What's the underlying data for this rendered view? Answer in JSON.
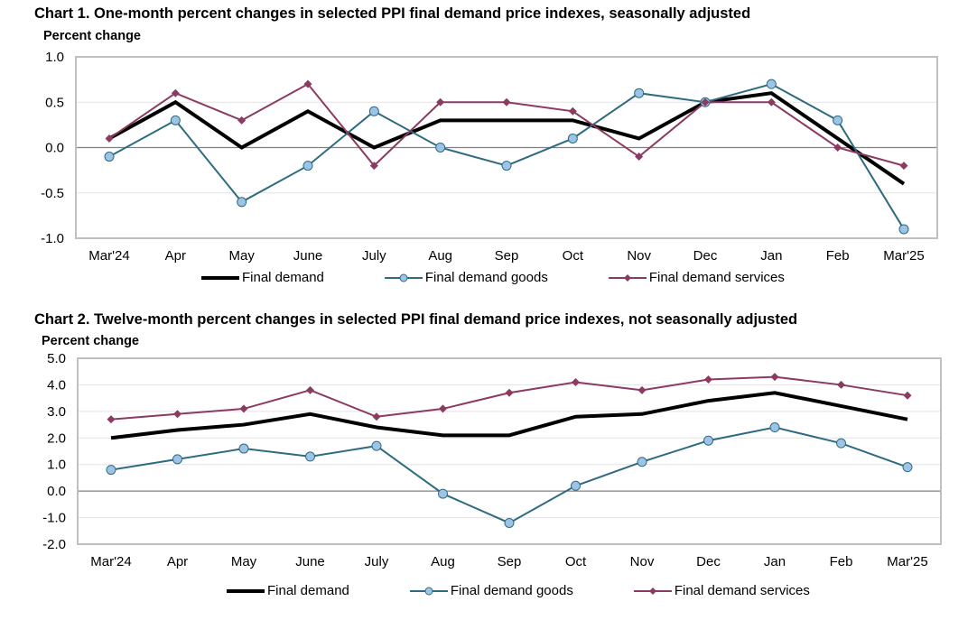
{
  "colors": {
    "final_demand": "#000000",
    "goods_line": "#2E6B80",
    "goods_marker": "#9DC3E6",
    "services": "#8B3A62",
    "frame": "#BFBFBF",
    "gridline": "#E3E3E3",
    "zero_line": "#808080"
  },
  "chart_data": [
    {
      "type": "line",
      "title": "Chart 1. One-month percent changes in selected PPI final demand price indexes, seasonally adjusted",
      "ylabel": "Percent change",
      "xlabel": "",
      "categories": [
        "Mar'24",
        "Apr",
        "May",
        "June",
        "July",
        "Aug",
        "Sep",
        "Oct",
        "Nov",
        "Dec",
        "Jan",
        "Feb",
        "Mar'25"
      ],
      "ylim": [
        -1.0,
        1.0
      ],
      "yticks": [
        1.0,
        0.5,
        0.0,
        -0.5,
        -1.0
      ],
      "ytick_labels": [
        "1.0",
        "0.5",
        "0.0",
        "-0.5",
        "-1.0"
      ],
      "grid": true,
      "legend_position": "bottom",
      "series": [
        {
          "key": "final_demand",
          "name": "Final demand",
          "marker": "none",
          "values": [
            0.1,
            0.5,
            0.0,
            0.4,
            0.0,
            0.3,
            0.3,
            0.3,
            0.1,
            0.5,
            0.6,
            0.1,
            -0.4
          ]
        },
        {
          "key": "goods",
          "name": "Final demand goods",
          "marker": "circle",
          "values": [
            -0.1,
            0.3,
            -0.6,
            -0.2,
            0.4,
            0.0,
            -0.2,
            0.1,
            0.6,
            0.5,
            0.7,
            0.3,
            -0.9
          ]
        },
        {
          "key": "services",
          "name": "Final demand services",
          "marker": "diamond",
          "values": [
            0.1,
            0.6,
            0.3,
            0.7,
            -0.2,
            0.5,
            0.5,
            0.4,
            -0.1,
            0.5,
            0.5,
            0.0,
            -0.2
          ]
        }
      ]
    },
    {
      "type": "line",
      "title": "Chart 2. Twelve-month percent changes in selected PPI final demand price indexes, not seasonally adjusted",
      "ylabel": "Percent change",
      "xlabel": "",
      "categories": [
        "Mar'24",
        "Apr",
        "May",
        "June",
        "July",
        "Aug",
        "Sep",
        "Oct",
        "Nov",
        "Dec",
        "Jan",
        "Feb",
        "Mar'25"
      ],
      "ylim": [
        -2.0,
        5.0
      ],
      "yticks": [
        5.0,
        4.0,
        3.0,
        2.0,
        1.0,
        0.0,
        -1.0,
        -2.0
      ],
      "ytick_labels": [
        "5.0",
        "4.0",
        "3.0",
        "2.0",
        "1.0",
        "0.0",
        "-1.0",
        "-2.0"
      ],
      "grid": true,
      "legend_position": "bottom",
      "series": [
        {
          "key": "final_demand",
          "name": "Final demand",
          "marker": "none",
          "values": [
            2.0,
            2.3,
            2.5,
            2.9,
            2.4,
            2.1,
            2.1,
            2.8,
            2.9,
            3.4,
            3.7,
            3.2,
            2.7
          ]
        },
        {
          "key": "goods",
          "name": "Final demand goods",
          "marker": "circle",
          "values": [
            0.8,
            1.2,
            1.6,
            1.3,
            1.7,
            -0.1,
            -1.2,
            0.2,
            1.1,
            1.9,
            2.4,
            1.8,
            0.9
          ]
        },
        {
          "key": "services",
          "name": "Final demand services",
          "marker": "diamond",
          "values": [
            2.7,
            2.9,
            3.1,
            3.8,
            2.8,
            3.1,
            3.7,
            4.1,
            3.8,
            4.2,
            4.3,
            4.0,
            3.6
          ]
        }
      ]
    }
  ]
}
